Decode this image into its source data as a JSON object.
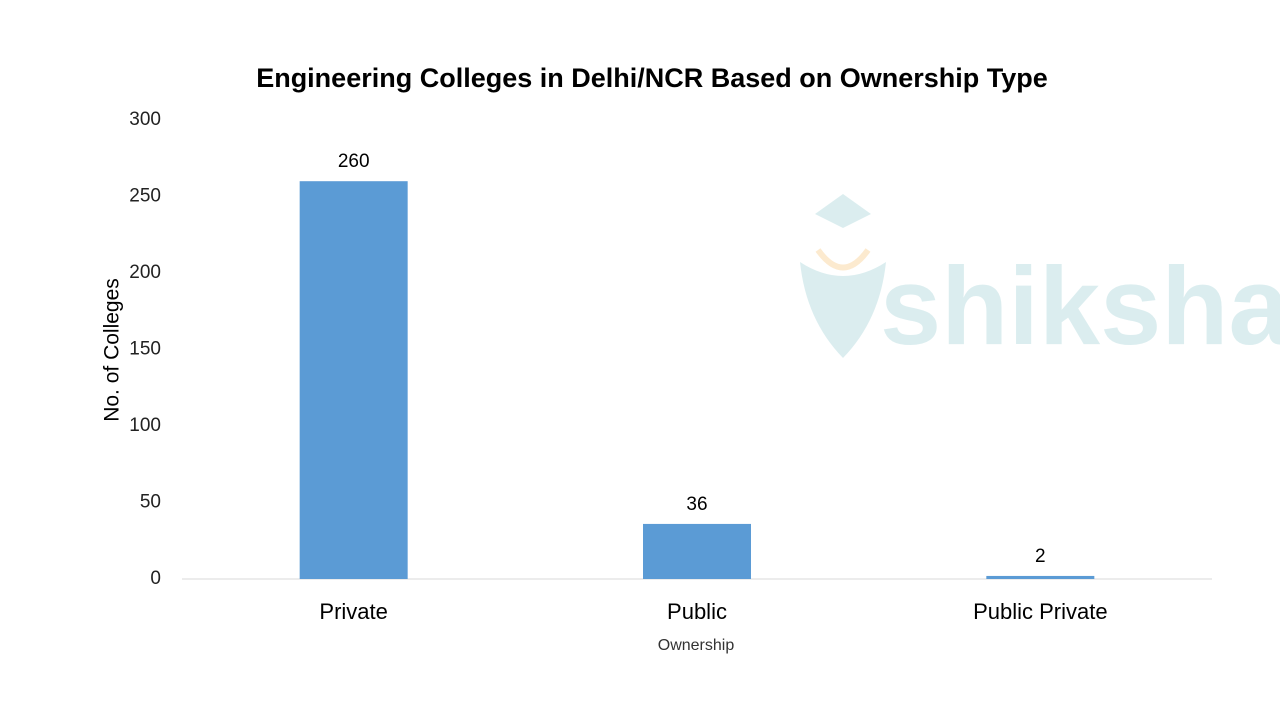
{
  "chart_data": {
    "type": "bar",
    "title": "Engineering Colleges in Delhi/NCR Based on Ownership Type",
    "xlabel": "Ownership",
    "ylabel": "No. of Colleges",
    "watermark": "shiksha",
    "categories": [
      "Private",
      "Public",
      "Public Private"
    ],
    "values": [
      260,
      36,
      2
    ],
    "color": "#5b9bd5",
    "ylim": [
      0,
      300
    ],
    "yticks": [
      0,
      50,
      100,
      150,
      200,
      250,
      300
    ],
    "grid": false
  }
}
